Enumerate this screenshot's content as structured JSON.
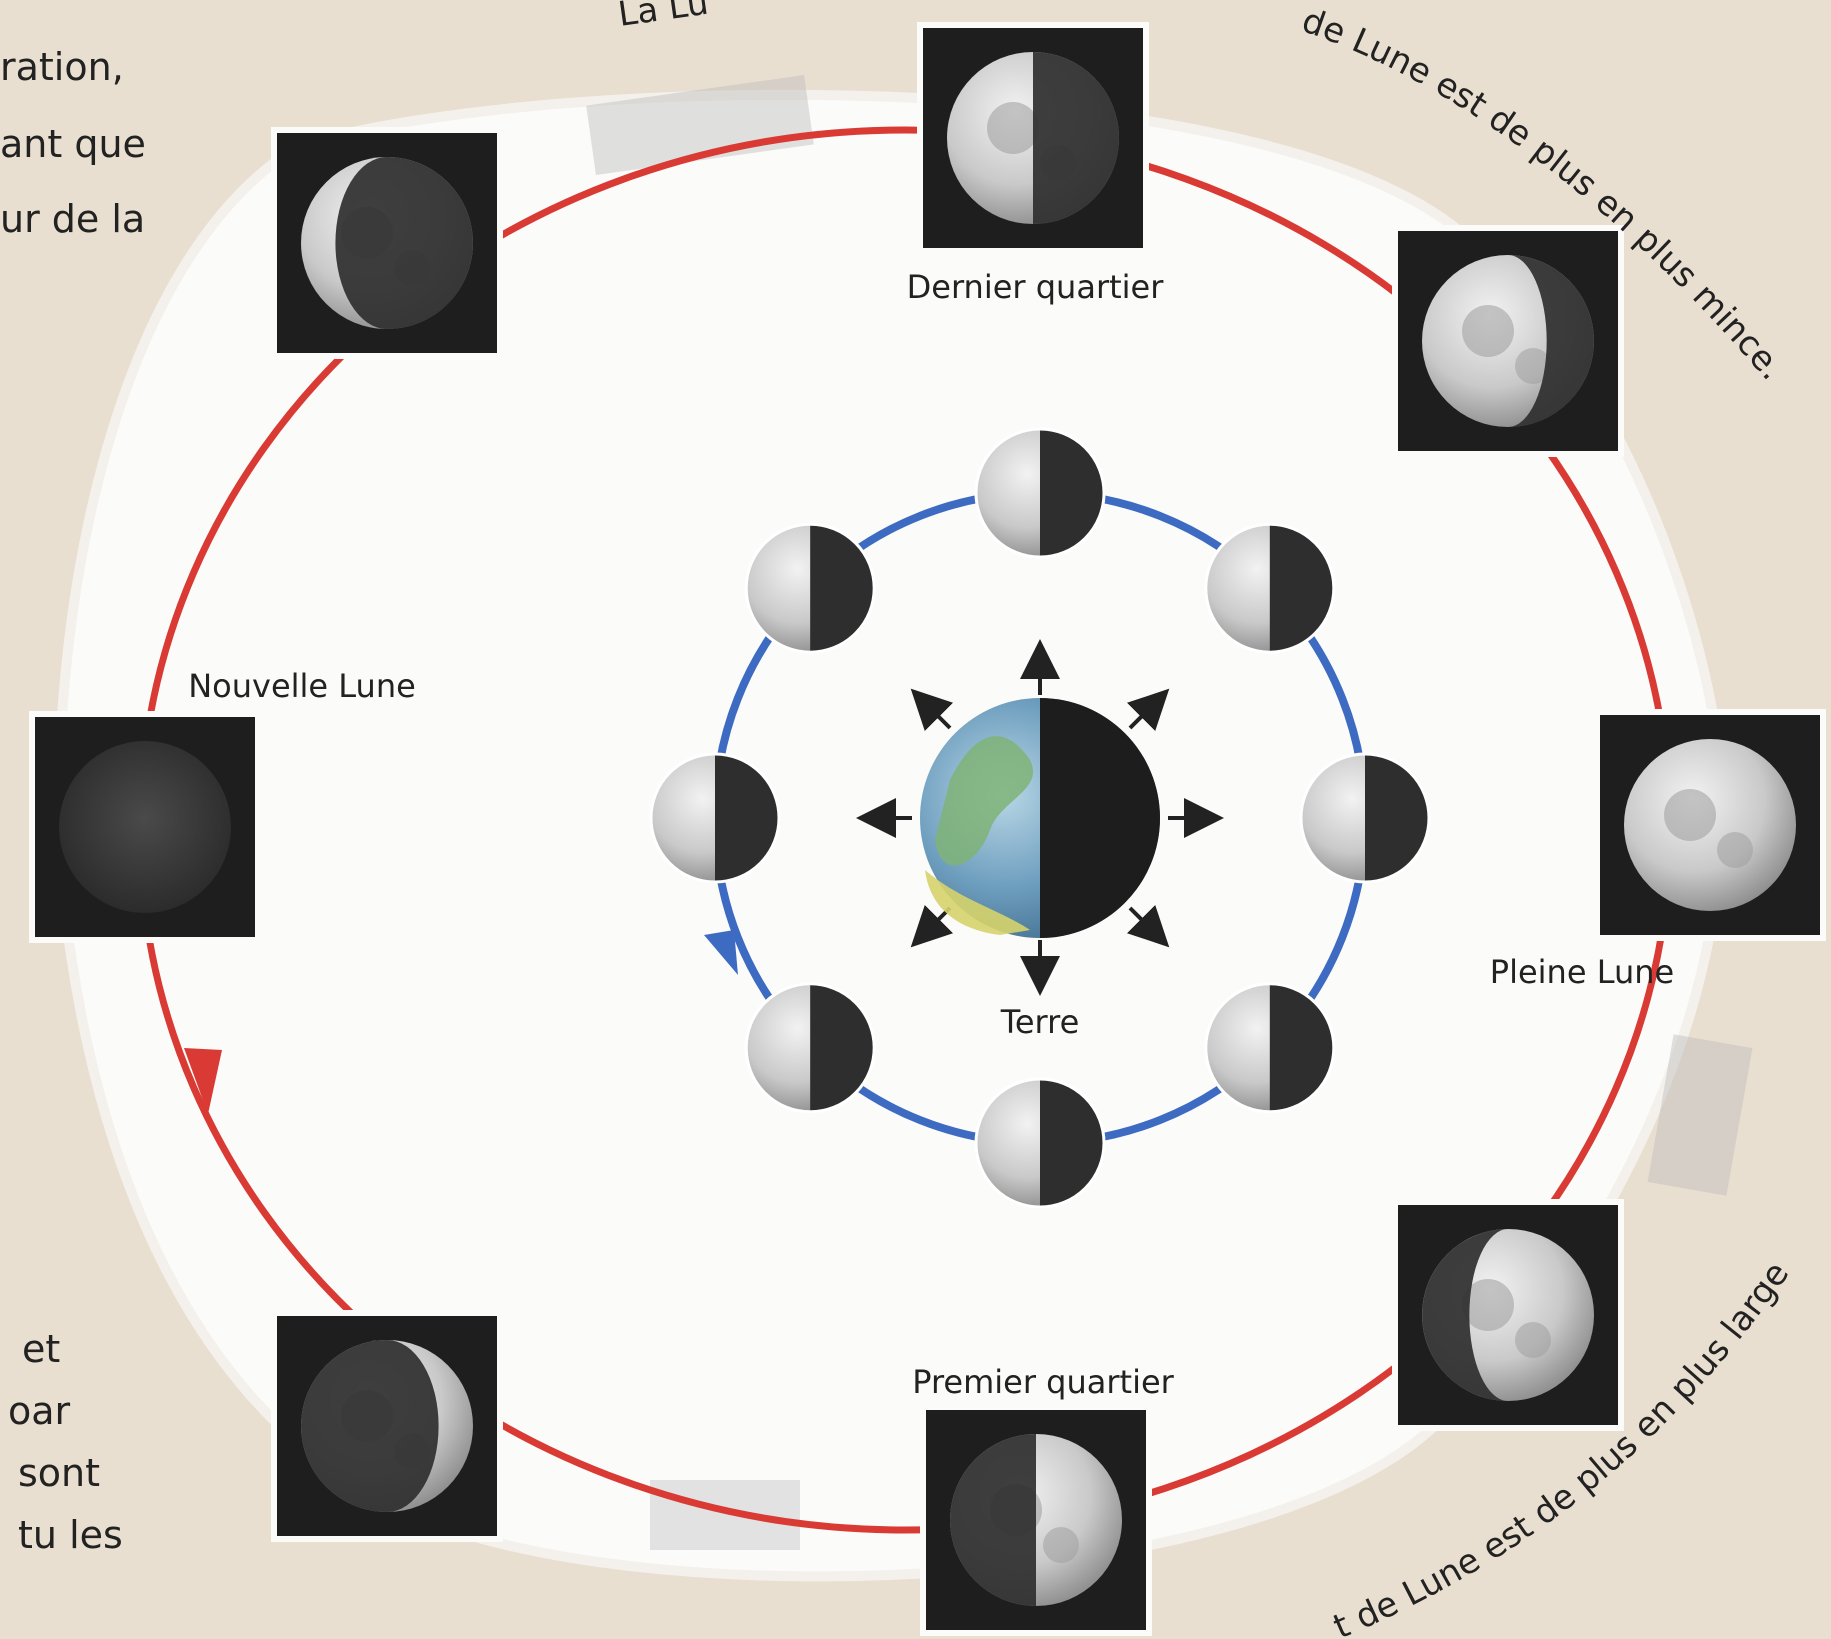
{
  "labels": {
    "last_quarter": "Dernier quartier",
    "new_moon": "Nouvelle Lune",
    "full_moon": "Pleine Lune",
    "first_quarter": "Premier quartier",
    "earth": "Terre"
  },
  "arc_text": {
    "top": "de Lune est de plus en plus mince.",
    "bottom": "t de Lune est de plus en plus large",
    "top_left_fragment": "La Lu"
  },
  "left_text": {
    "top_lines": [
      "ration,",
      "ant que",
      "ur de la"
    ],
    "bottom_lines": [
      "et",
      "oar",
      "sont",
      "tu les"
    ]
  },
  "colors": {
    "outer_orbit": "#d93a34",
    "inner_orbit": "#3e6bc2",
    "panel": "#fbfbfa",
    "page": "#e9dfd0",
    "tile": "#1e1e1e"
  }
}
